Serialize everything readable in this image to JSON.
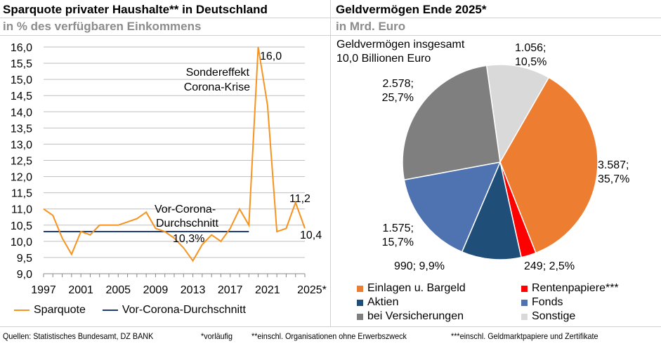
{
  "left": {
    "title": "Sparquote privater Haushalte** in Deutschland",
    "subtitle": "in % des verfügbaren Einkommens"
  },
  "right": {
    "title": "Geldvermögen Ende 2025*",
    "subtitle": "in Mrd. Euro"
  },
  "chart_data": [
    {
      "type": "line",
      "x": [
        1997,
        1998,
        1999,
        2000,
        2001,
        2002,
        2003,
        2004,
        2005,
        2006,
        2007,
        2008,
        2009,
        2010,
        2011,
        2012,
        2013,
        2014,
        2015,
        2016,
        2017,
        2018,
        2019,
        2020,
        2021,
        2022,
        2023,
        2024,
        2025
      ],
      "x_tick_labels": [
        "1997",
        "2001",
        "2005",
        "2009",
        "2013",
        "2017",
        "2021",
        "2025*"
      ],
      "y_tick_labels": [
        "9,0",
        "9,5",
        "10,0",
        "10,5",
        "11,0",
        "11,5",
        "12,0",
        "12,5",
        "13,0",
        "13,5",
        "14,0",
        "14,5",
        "15,0",
        "15,5",
        "16,0"
      ],
      "ylim": [
        9,
        16
      ],
      "grid": true,
      "legend": "bottom",
      "series": [
        {
          "name": "Sparquote",
          "color": "#F7931E",
          "values": [
            11.0,
            10.8,
            10.1,
            9.6,
            10.3,
            10.2,
            10.5,
            10.5,
            10.5,
            10.6,
            10.7,
            10.9,
            10.4,
            10.3,
            10.1,
            9.8,
            9.4,
            9.9,
            10.2,
            10.0,
            10.4,
            11.0,
            10.5,
            16.0,
            14.2,
            10.3,
            10.4,
            11.2,
            10.4
          ]
        },
        {
          "name": "Vor-Corona-Durchschnitt",
          "color": "#1F3A7A",
          "value": 10.3,
          "x_range": [
            1997,
            2019
          ]
        }
      ],
      "annotations": {
        "peak": "16,0",
        "corona1": "Sondereffekt",
        "corona2": "Corona-Krise",
        "avg1": "Vor-Corona-",
        "avg2": "Durchschnitt",
        "avg_value": "10,3%",
        "v2024": "11,2",
        "v2025": "10,4"
      }
    },
    {
      "type": "pie",
      "total1": "Geldvermögen insgesamt",
      "total2": "10,0 Billionen Euro",
      "legend": "bottom",
      "slices": [
        {
          "name": "Sonstige",
          "value": 1056,
          "percent": 10.5,
          "label1": "1.056;",
          "label2": "10,5%",
          "color": "#D9D9D9"
        },
        {
          "name": "Einlagen u. Bargeld",
          "value": 3587,
          "percent": 35.7,
          "label1": "3.587;",
          "label2": "35,7%",
          "color": "#ED7D31"
        },
        {
          "name": "Rentenpapiere***",
          "value": 249,
          "percent": 2.5,
          "label1": "249; 2,5%",
          "label2": "",
          "color": "#FF0000"
        },
        {
          "name": "Aktien",
          "value": 990,
          "percent": 9.9,
          "label1": "990; 9,9%",
          "label2": "",
          "color": "#1F4E79"
        },
        {
          "name": "Fonds",
          "value": 1575,
          "percent": 15.7,
          "label1": "1.575;",
          "label2": "15,7%",
          "color": "#4F73B0"
        },
        {
          "name": "bei Versicherungen",
          "value": 2578,
          "percent": 25.7,
          "label1": "2.578;",
          "label2": "25,7%",
          "color": "#7F7F7F"
        }
      ]
    }
  ],
  "footer": {
    "sources": "Quellen: Statistisches Bundesamt, DZ BANK",
    "n1": "*vorläufig",
    "n2": "**einschl. Organisationen ohne Erwerbszweck",
    "n3": "***einschl. Geldmarktpapiere und Zertifikate"
  }
}
